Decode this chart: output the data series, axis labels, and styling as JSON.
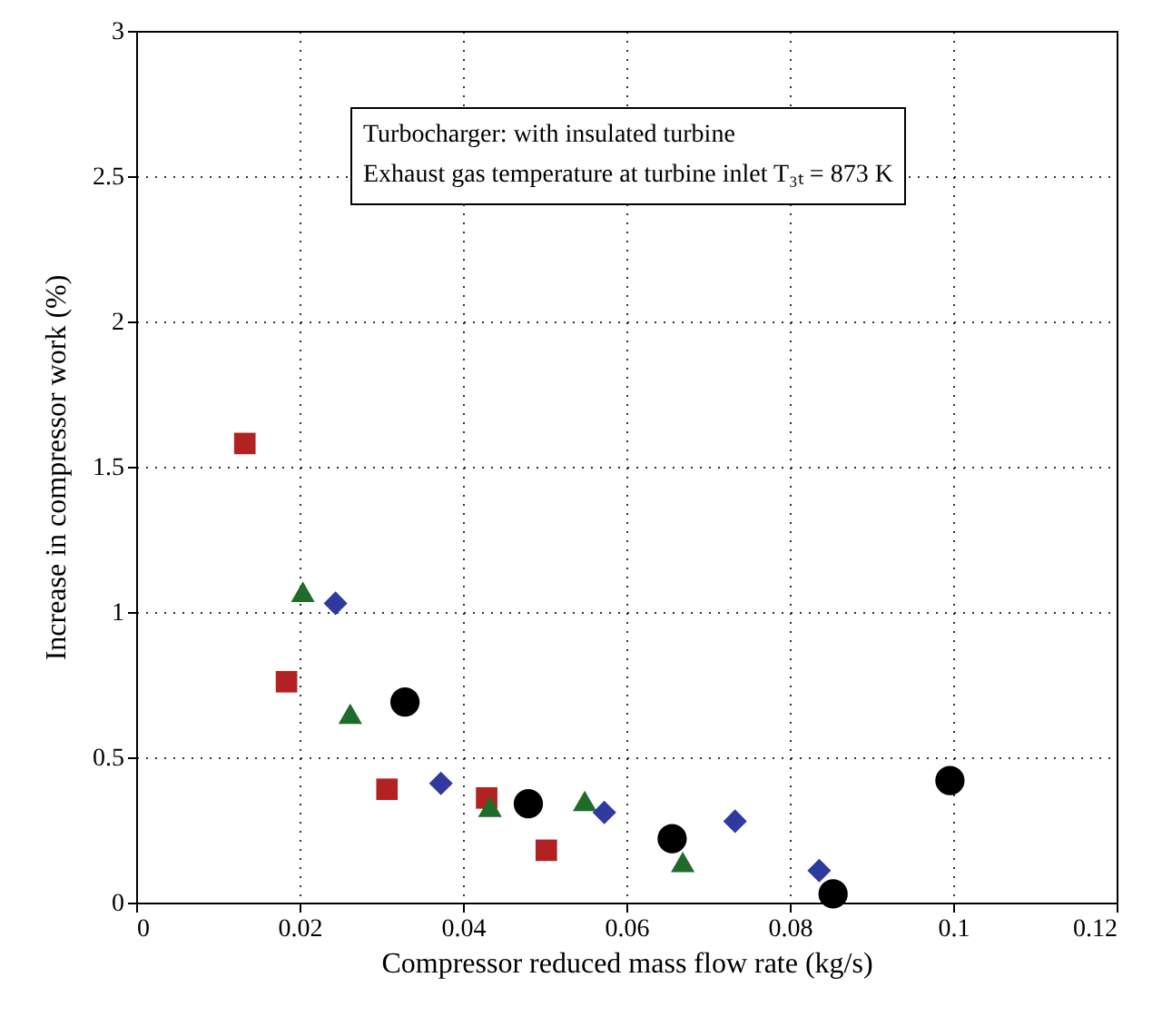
{
  "chart_data": {
    "type": "scatter",
    "xlabel": "Compressor reduced mass flow rate (kg/s)",
    "ylabel": "Increase in compressor work (%)",
    "annotations": [
      "Turbocharger: with insulated turbine",
      "Exhaust gas temperature at turbine inlet T₃ₜ = 873 K"
    ],
    "xlim": [
      0,
      0.12
    ],
    "xticks": [
      0,
      0.02,
      0.04,
      0.06,
      0.08,
      0.1,
      0.12
    ],
    "ylim": [
      0,
      3
    ],
    "yticks": [
      0,
      0.5,
      1,
      1.5,
      2,
      2.5,
      3
    ],
    "grid": true,
    "series": [
      {
        "color": "#b22222",
        "marker": "square",
        "x": [
          0.0133,
          0.0184,
          0.0307,
          0.0429,
          0.0502
        ],
        "values": [
          1.58,
          0.76,
          0.39,
          0.36,
          0.18
        ]
      },
      {
        "color": "#1e6b2a",
        "marker": "triangle",
        "x": [
          0.0204,
          0.0262,
          0.0433,
          0.0549,
          0.0669
        ],
        "values": [
          1.07,
          0.65,
          0.33,
          0.35,
          0.14
        ]
      },
      {
        "color": "#2e3a9e",
        "marker": "diamond",
        "x": [
          0.0244,
          0.0373,
          0.0573,
          0.0733,
          0.0836
        ],
        "values": [
          1.03,
          0.41,
          0.31,
          0.28,
          0.11
        ]
      },
      {
        "color": "#000000",
        "marker": "circle",
        "x": [
          0.0329,
          0.048,
          0.0656,
          0.0853,
          0.0996
        ],
        "values": [
          0.69,
          0.34,
          0.22,
          0.03,
          0.42
        ]
      }
    ]
  }
}
